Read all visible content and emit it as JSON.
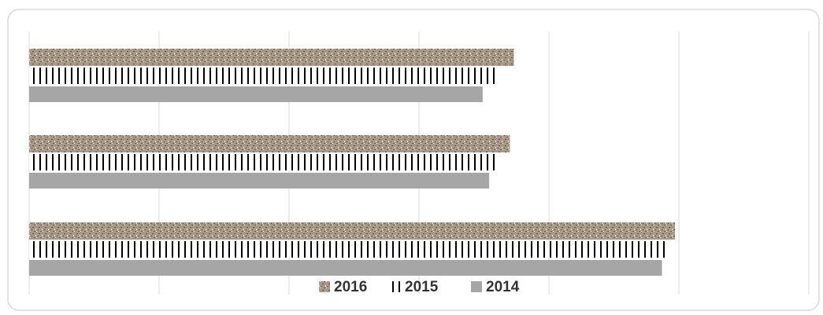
{
  "chart_data": {
    "type": "bar",
    "orientation": "horizontal",
    "categories": [
      null,
      null,
      null
    ],
    "series": [
      {
        "name": "2016",
        "color": "#a89888",
        "pattern": "speckle",
        "values": [
          3.73,
          3.7,
          4.97
        ]
      },
      {
        "name": "2015",
        "color": "#000000",
        "pattern": "stripes",
        "values": [
          3.61,
          3.61,
          4.92
        ]
      },
      {
        "name": "2014",
        "color": "#a6a6a6",
        "values": [
          3.49,
          3.54,
          4.87
        ]
      }
    ],
    "xlim": [
      0,
      6
    ],
    "xticks": [
      0,
      1,
      2,
      3,
      4,
      5,
      6
    ],
    "grid": true,
    "legend": "bottom"
  }
}
